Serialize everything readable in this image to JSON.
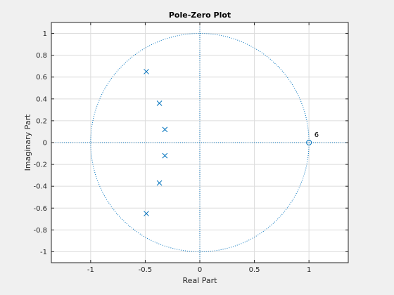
{
  "chart_data": {
    "type": "scatter",
    "title": "Pole-Zero Plot",
    "xlabel": "Real Part",
    "ylabel": "Imaginary Part",
    "xlim": [
      -1.36,
      1.36
    ],
    "ylim": [
      -1.1,
      1.1
    ],
    "xticks": [
      -1,
      -0.5,
      0,
      0.5,
      1
    ],
    "xtick_labels": [
      "-1",
      "-0.5",
      "0",
      "0.5",
      "1"
    ],
    "yticks": [
      -1,
      -0.8,
      -0.6,
      -0.4,
      -0.2,
      0,
      0.2,
      0.4,
      0.6,
      0.8,
      1
    ],
    "ytick_labels": [
      "-1",
      "-0.8",
      "-0.6",
      "-0.4",
      "-0.2",
      "0",
      "0.2",
      "0.4",
      "0.6",
      "0.8",
      "1"
    ],
    "grid": true,
    "unit_circle": true,
    "series": [
      {
        "marker": "x",
        "x": [
          -0.49,
          -0.37,
          -0.32,
          -0.32,
          -0.37,
          -0.49
        ],
        "y": [
          0.65,
          0.36,
          0.12,
          -0.12,
          -0.37,
          -0.65
        ]
      },
      {
        "marker": "o",
        "x": [
          1.0
        ],
        "y": [
          0.0
        ]
      }
    ],
    "annotations": [
      {
        "text": "6",
        "x": 1.03,
        "y": 0.04
      }
    ],
    "color": "#0072bd"
  }
}
